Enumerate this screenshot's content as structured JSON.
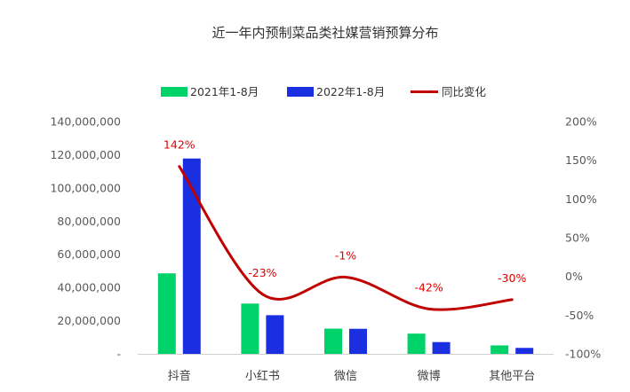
{
  "chart_data": {
    "type": "bar",
    "title": "近一年内预制菜品类社媒营销预算分布",
    "categories": [
      "抖音",
      "小红书",
      "微信",
      "微博",
      "其他平台"
    ],
    "series": [
      {
        "name": "2021年1-8月",
        "kind": "bar",
        "axis": "left",
        "color": "#00d26a",
        "values": [
          48500000,
          30300000,
          15200000,
          12200000,
          5100000
        ]
      },
      {
        "name": "2022年1-8月",
        "kind": "bar",
        "axis": "left",
        "color": "#1a2fe0",
        "values": [
          117700000,
          23300000,
          15100000,
          7100000,
          3600000
        ]
      },
      {
        "name": "同比变化",
        "kind": "line",
        "axis": "right",
        "color": "#c00000",
        "values": [
          142,
          -23,
          -1,
          -42,
          -30
        ],
        "labels": [
          "142%",
          "-23%",
          "-1%",
          "-42%",
          "-30%"
        ]
      }
    ],
    "y_left": {
      "ylim": [
        0,
        140000000
      ],
      "ticks": [
        "-",
        "20,000,000",
        "40,000,000",
        "60,000,000",
        "80,000,000",
        "100,000,000",
        "120,000,000",
        "140,000,000"
      ]
    },
    "y_right": {
      "ylim": [
        -100,
        200
      ],
      "ticks": [
        "-100%",
        "-50%",
        "0%",
        "50%",
        "100%",
        "150%",
        "200%"
      ]
    },
    "grid": false,
    "legend_position": "top"
  }
}
